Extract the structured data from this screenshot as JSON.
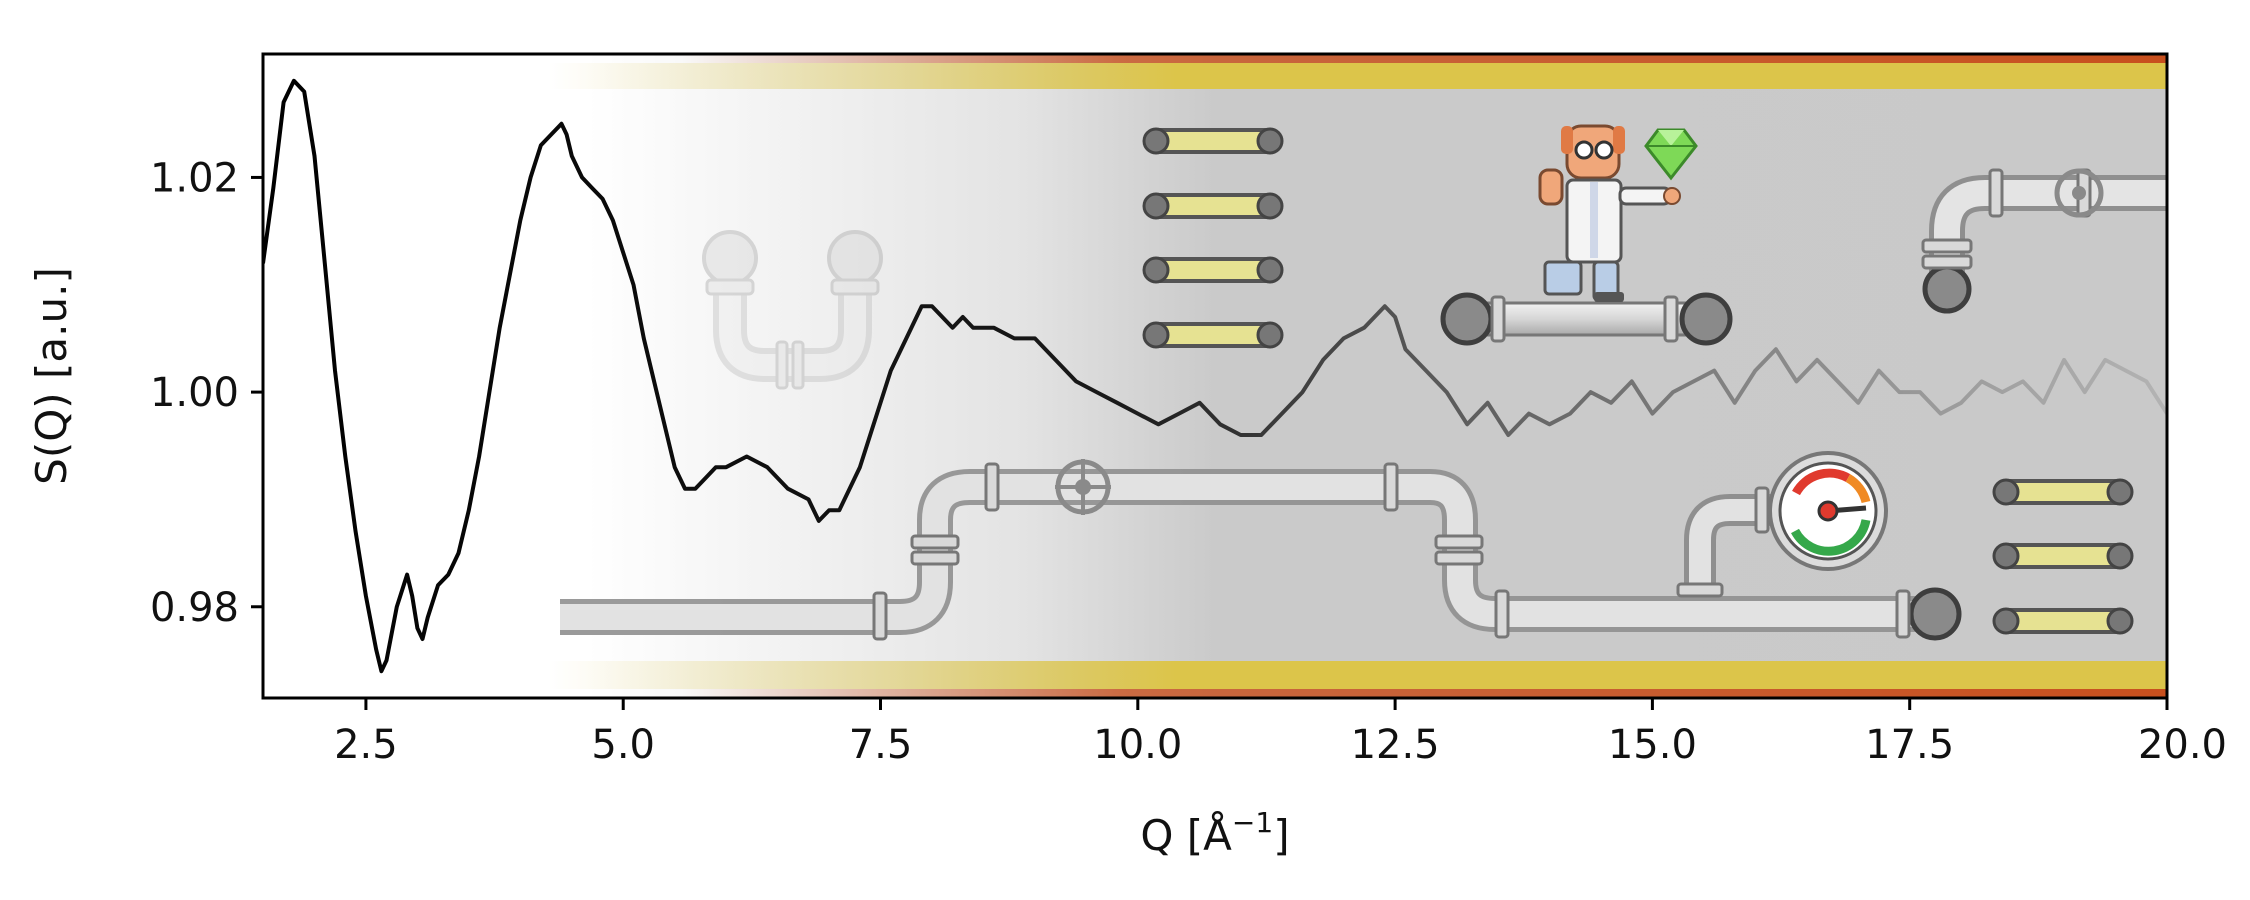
{
  "chart_data": {
    "type": "line",
    "title": "",
    "xlabel": "Q [Å",
    "xlabel_sup": "−1",
    "xlabel_close": "]",
    "ylabel": "S(Q) [a.u.]",
    "xlim": [
      1.5,
      20.0
    ],
    "ylim": [
      0.9715,
      1.0315
    ],
    "x_ticks": [
      2.5,
      5.0,
      7.5,
      10.0,
      12.5,
      15.0,
      17.5,
      20.0
    ],
    "x_tick_labels": [
      "2.5",
      "5.0",
      "7.5",
      "10.0",
      "12.5",
      "15.0",
      "17.5",
      "20.0"
    ],
    "y_ticks": [
      0.98,
      1.0,
      1.02
    ],
    "y_tick_labels": [
      "0.98",
      "1.00",
      "1.02"
    ],
    "grid": false,
    "legend": "none",
    "series": [
      {
        "color": "#000000",
        "fade_to": "#bbbbbb",
        "x": [
          1.5,
          1.6,
          1.7,
          1.8,
          1.9,
          2.0,
          2.1,
          2.2,
          2.3,
          2.4,
          2.5,
          2.6,
          2.65,
          2.7,
          2.8,
          2.9,
          2.95,
          3.0,
          3.05,
          3.1,
          3.2,
          3.3,
          3.4,
          3.5,
          3.6,
          3.7,
          3.8,
          3.9,
          4.0,
          4.1,
          4.2,
          4.3,
          4.4,
          4.45,
          4.5,
          4.6,
          4.7,
          4.8,
          4.9,
          5.0,
          5.1,
          5.2,
          5.3,
          5.4,
          5.5,
          5.6,
          5.7,
          5.8,
          5.9,
          6.0,
          6.2,
          6.4,
          6.6,
          6.8,
          6.9,
          7.0,
          7.1,
          7.2,
          7.3,
          7.4,
          7.5,
          7.6,
          7.7,
          7.8,
          7.9,
          8.0,
          8.1,
          8.2,
          8.3,
          8.4,
          8.6,
          8.8,
          9.0,
          9.2,
          9.4,
          9.6,
          9.8,
          10.0,
          10.2,
          10.4,
          10.6,
          10.8,
          11.0,
          11.2,
          11.4,
          11.6,
          11.8,
          12.0,
          12.2,
          12.4,
          12.5,
          12.6,
          12.8,
          13.0,
          13.2,
          13.4,
          13.6,
          13.8,
          14.0,
          14.2,
          14.4,
          14.6,
          14.8,
          15.0,
          15.2,
          15.4,
          15.6,
          15.8,
          16.0,
          16.2,
          16.4,
          16.6,
          16.8,
          17.0,
          17.2,
          17.4,
          17.6,
          17.8,
          18.0,
          18.2,
          18.4,
          18.6,
          18.8,
          19.0,
          19.2,
          19.4,
          19.6,
          19.8,
          20.0
        ],
        "y": [
          1.012,
          1.019,
          1.027,
          1.029,
          1.028,
          1.022,
          1.012,
          1.002,
          0.994,
          0.987,
          0.981,
          0.976,
          0.974,
          0.975,
          0.98,
          0.983,
          0.981,
          0.978,
          0.977,
          0.979,
          0.982,
          0.983,
          0.985,
          0.989,
          0.994,
          1.0,
          1.006,
          1.011,
          1.016,
          1.02,
          1.023,
          1.024,
          1.025,
          1.024,
          1.022,
          1.02,
          1.019,
          1.018,
          1.016,
          1.013,
          1.01,
          1.005,
          1.001,
          0.997,
          0.993,
          0.991,
          0.991,
          0.992,
          0.993,
          0.993,
          0.994,
          0.993,
          0.991,
          0.99,
          0.988,
          0.989,
          0.989,
          0.991,
          0.993,
          0.996,
          0.999,
          1.002,
          1.004,
          1.006,
          1.008,
          1.008,
          1.007,
          1.006,
          1.007,
          1.006,
          1.006,
          1.005,
          1.005,
          1.003,
          1.001,
          1.0,
          0.999,
          0.998,
          0.997,
          0.998,
          0.999,
          0.997,
          0.996,
          0.996,
          0.998,
          1.0,
          1.003,
          1.005,
          1.006,
          1.008,
          1.007,
          1.004,
          1.002,
          1.0,
          0.997,
          0.999,
          0.996,
          0.998,
          0.997,
          0.998,
          1.0,
          0.999,
          1.001,
          0.998,
          1.0,
          1.001,
          1.002,
          0.999,
          1.002,
          1.004,
          1.001,
          1.003,
          1.001,
          0.999,
          1.002,
          1.0,
          1.0,
          0.998,
          0.999,
          1.001,
          1.0,
          1.001,
          0.999,
          1.003,
          1.0,
          1.003,
          1.002,
          1.001,
          0.998
        ]
      }
    ]
  },
  "colors": {
    "pipe": "#d8d8d8",
    "pipe_edge": "#9a9a9a",
    "background_gray": "#c9c9c9",
    "stripe_yellow": "#dcc54a",
    "stripe_orange": "#c8501e",
    "rung_yellow": "#e6e292",
    "gem_green": "#7ed957",
    "gauge_red": "#e03a2e",
    "gauge_green": "#35a84a",
    "gauge_orange": "#f08a24"
  },
  "icons": [
    "pipe-icon",
    "valve-wheel-icon",
    "pressure-gauge-icon",
    "scientist-icon",
    "gem-icon",
    "ladder-rung-icon"
  ]
}
